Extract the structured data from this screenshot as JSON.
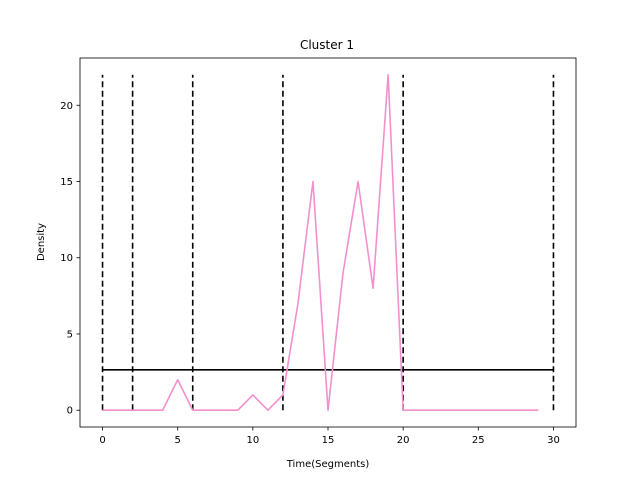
{
  "chart_data": {
    "type": "line",
    "title": "Cluster 1",
    "xlabel": "Time(Segments)",
    "ylabel": "Density",
    "xlim": [
      -1.5,
      31.5
    ],
    "ylim": [
      -1.1,
      23.1
    ],
    "x_ticks": [
      0,
      5,
      10,
      15,
      20,
      25,
      30
    ],
    "y_ticks": [
      0,
      5,
      10,
      15,
      20
    ],
    "grid": false,
    "series": [
      {
        "color": "#f48fce",
        "x": [
          0,
          1,
          2,
          3,
          4,
          5,
          6,
          7,
          8,
          9,
          10,
          11,
          12,
          13,
          14,
          15,
          16,
          17,
          18,
          19,
          20,
          21,
          22,
          23,
          24,
          25,
          26,
          27,
          28,
          29
        ],
        "values": [
          0,
          0,
          0,
          0,
          0,
          2,
          0,
          0,
          0,
          0,
          1,
          0,
          1,
          7,
          15,
          0,
          9,
          15,
          8,
          22,
          0,
          0,
          0,
          0,
          0,
          0,
          0,
          0,
          0,
          0
        ]
      }
    ],
    "vertical_lines": {
      "x": [
        0,
        2,
        6,
        12,
        20,
        30
      ],
      "y_range": [
        0,
        22
      ],
      "style": "dashed",
      "color": "#000000"
    },
    "horizontal_line": {
      "y": 2.65,
      "x_range": [
        0,
        30
      ],
      "color": "#000000"
    }
  }
}
